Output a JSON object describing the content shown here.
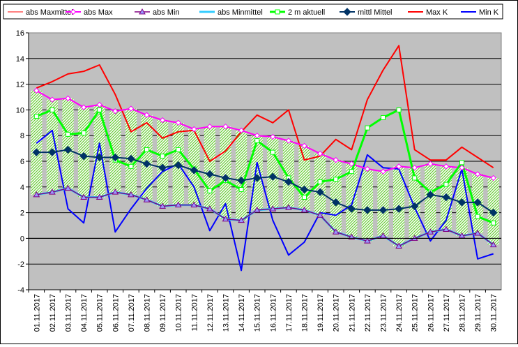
{
  "chart_data": {
    "type": "line",
    "title": "",
    "xlabel": "",
    "ylabel": "",
    "ylim": [
      -4,
      16
    ],
    "yticks": [
      -4,
      -2,
      0,
      2,
      4,
      6,
      8,
      10,
      12,
      14,
      16
    ],
    "grid": "horizontal",
    "legend_position": "top",
    "categories": [
      "01.11.2017",
      "02.11.2017",
      "03.11.2017",
      "04.11.2017",
      "05.11.2017",
      "06.11.2017",
      "07.11.2017",
      "08.11.2017",
      "09.11.2017",
      "10.11.2017",
      "11.11.2017",
      "12.11.2017",
      "13.11.2017",
      "14.11.2017",
      "15.11.2017",
      "16.11.2017",
      "17.11.2017",
      "18.11.2017",
      "19.11.2017",
      "20.11.2017",
      "21.11.2017",
      "22.11.2017",
      "23.11.2017",
      "24.11.2017",
      "25.11.2017",
      "26.11.2017",
      "27.11.2017",
      "28.11.2017",
      "29.11.2017",
      "30.11.2017"
    ],
    "series": [
      {
        "name": "abs Maxmittel",
        "color": "#ff8080",
        "values": [
          11.5,
          10.8,
          10.9,
          10.2,
          10.4,
          9.9,
          10.1,
          9.6,
          9.2,
          9.0,
          8.5,
          8.7,
          8.7,
          8.4,
          8.0,
          7.9,
          7.6,
          7.2,
          6.6,
          6.1,
          5.8,
          5.4,
          5.2,
          5.6,
          5.5,
          5.8,
          5.6,
          5.5,
          5.0,
          4.7
        ]
      },
      {
        "name": "abs Max",
        "color": "#ff00ff",
        "values": [
          11.5,
          10.8,
          10.9,
          10.2,
          10.4,
          9.9,
          10.1,
          9.6,
          9.2,
          9.0,
          8.5,
          8.7,
          8.7,
          8.4,
          8.0,
          7.9,
          7.6,
          7.2,
          6.6,
          6.1,
          5.8,
          5.4,
          5.2,
          5.6,
          5.5,
          5.8,
          5.6,
          5.5,
          5.0,
          4.7
        ]
      },
      {
        "name": "abs Min",
        "color": "#800080",
        "values": [
          3.4,
          3.6,
          3.9,
          3.2,
          3.2,
          3.6,
          3.4,
          3.0,
          2.5,
          2.6,
          2.6,
          2.3,
          1.5,
          1.4,
          2.2,
          2.3,
          2.4,
          2.2,
          1.8,
          0.5,
          0.1,
          -0.2,
          0.2,
          -0.6,
          0.0,
          0.5,
          0.7,
          0.2,
          0.4,
          -0.5
        ]
      },
      {
        "name": "abs Minmittel",
        "color": "#33ccff",
        "values": [
          3.4,
          3.6,
          3.9,
          3.2,
          3.2,
          3.6,
          3.4,
          3.0,
          2.5,
          2.6,
          2.6,
          2.3,
          1.5,
          1.4,
          2.2,
          2.3,
          2.4,
          2.2,
          1.8,
          0.5,
          0.1,
          -0.2,
          0.2,
          -0.6,
          0.0,
          0.5,
          0.7,
          0.2,
          0.4,
          -0.5
        ]
      },
      {
        "name": "2 m aktuell",
        "color": "#00ff00",
        "values": [
          9.5,
          10.0,
          8.1,
          8.2,
          10.0,
          6.1,
          5.6,
          6.9,
          6.4,
          6.9,
          5.4,
          3.7,
          4.5,
          3.8,
          7.6,
          6.7,
          4.7,
          3.2,
          4.4,
          4.6,
          5.2,
          8.6,
          9.4,
          10.0,
          4.7,
          3.6,
          4.2,
          5.9,
          1.7,
          1.2
        ]
      },
      {
        "name": "mittl Mittel",
        "color": "#003366",
        "values": [
          6.7,
          6.7,
          6.9,
          6.4,
          6.3,
          6.3,
          6.2,
          5.8,
          5.5,
          5.7,
          5.3,
          5.0,
          4.7,
          4.5,
          4.7,
          4.8,
          4.4,
          3.8,
          3.6,
          2.8,
          2.3,
          2.2,
          2.2,
          2.3,
          2.5,
          3.4,
          3.2,
          2.8,
          2.8,
          2.0
        ]
      },
      {
        "name": "Max K",
        "color": "#ff0000",
        "values": [
          11.7,
          12.2,
          12.8,
          13.0,
          13.5,
          11.2,
          8.3,
          9.0,
          7.8,
          8.3,
          8.4,
          6.0,
          6.8,
          8.3,
          9.6,
          9.0,
          10.0,
          6.1,
          6.4,
          7.7,
          6.9,
          10.8,
          13.1,
          15.0,
          6.9,
          6.1,
          6.1,
          7.1,
          6.3,
          5.5
        ]
      },
      {
        "name": "Min K",
        "color": "#0000ff",
        "values": [
          7.4,
          8.4,
          2.3,
          1.2,
          7.4,
          0.5,
          2.3,
          3.9,
          5.2,
          5.8,
          4.0,
          0.6,
          2.7,
          -2.5,
          5.9,
          1.4,
          -1.3,
          -0.3,
          2.0,
          1.8,
          2.6,
          6.5,
          5.5,
          5.4,
          2.4,
          -0.2,
          1.4,
          5.4,
          -1.6,
          -1.2
        ]
      }
    ]
  }
}
